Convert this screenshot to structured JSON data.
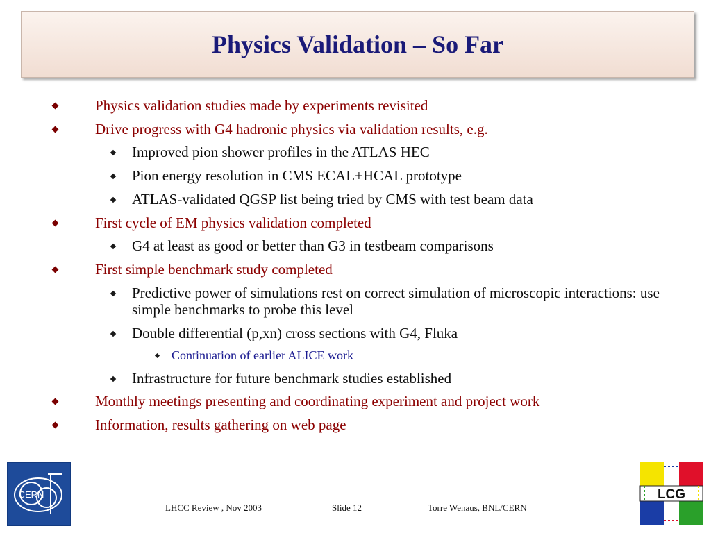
{
  "slide": {
    "title": "Physics Validation – So Far"
  },
  "bullets": [
    {
      "level": 1,
      "text": "Physics validation studies made by experiments revisited"
    },
    {
      "level": 1,
      "text": "Drive progress with G4 hadronic physics via validation results, e.g."
    },
    {
      "level": 2,
      "text": "Improved pion shower profiles in the ATLAS HEC"
    },
    {
      "level": 2,
      "text": "Pion energy resolution in CMS ECAL+HCAL prototype"
    },
    {
      "level": 2,
      "text": "ATLAS-validated QGSP list being tried by CMS with test beam data"
    },
    {
      "level": 1,
      "text": "First cycle of EM physics validation completed"
    },
    {
      "level": 2,
      "text": "G4 at least as good or better than G3 in testbeam comparisons"
    },
    {
      "level": 1,
      "text": "First simple benchmark study completed"
    },
    {
      "level": 2,
      "text": "Predictive power of simulations rest on correct simulation of microscopic interactions: use simple benchmarks to probe this level"
    },
    {
      "level": 2,
      "text": "Double differential (p,xn) cross sections with G4, Fluka"
    },
    {
      "level": 3,
      "text": "Continuation of earlier ALICE work"
    },
    {
      "level": 2,
      "text": "Infrastructure for future benchmark studies established"
    },
    {
      "level": 1,
      "text": "Monthly meetings presenting and coordinating experiment and project work"
    },
    {
      "level": 1,
      "text": "Information, results gathering on web page"
    }
  ],
  "footer": {
    "event": "LHCC Review , Nov 2003",
    "slide_number": "Slide 12",
    "author": "Torre Wenaus, BNL/CERN"
  },
  "logos": {
    "left": {
      "name": "cern-logo",
      "text": "CERN"
    },
    "right": {
      "name": "lcg-logo",
      "text": "LCG"
    }
  },
  "colors": {
    "title": "#1a1a78",
    "level1_text": "#8b0000",
    "level2_text": "#0d0d0d",
    "level3_text": "#1a1a90",
    "title_box_bg": "#f1ddd2"
  }
}
